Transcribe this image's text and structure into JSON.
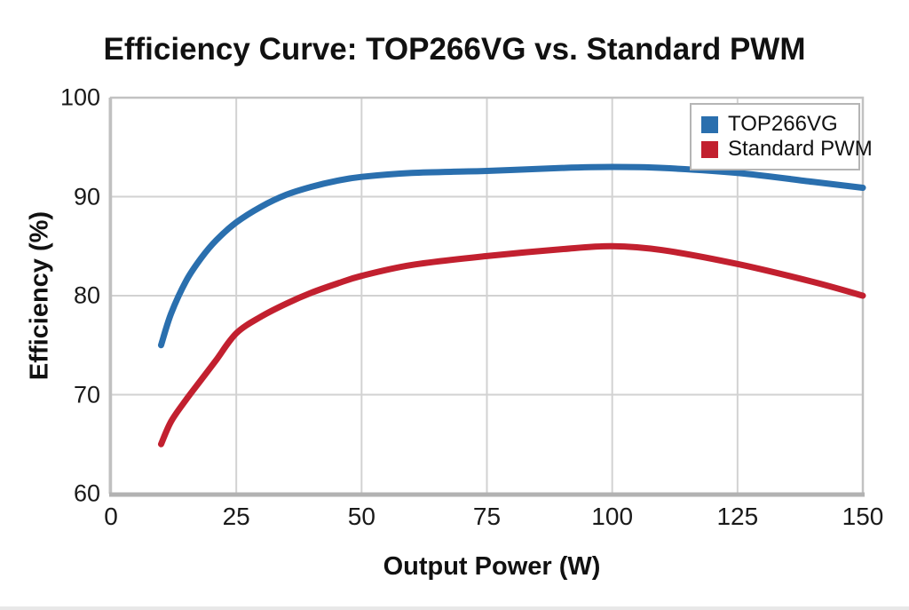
{
  "chart_data": {
    "type": "line",
    "title": "Efficiency Curve: TOP266VG vs. Standard PWM",
    "xlabel": "Output Power (W)",
    "ylabel": "Efficiency (%)",
    "xlim": [
      0,
      150
    ],
    "ylim": [
      60,
      100
    ],
    "xticks": [
      0,
      25,
      50,
      75,
      100,
      125,
      150
    ],
    "yticks": [
      60,
      70,
      80,
      90,
      100
    ],
    "grid": true,
    "grid_color": "#d2d2d2",
    "axis_color": "#c2c2c2",
    "legend_position": "top-right",
    "series": [
      {
        "name": "TOP266VG",
        "color": "#2a6fae",
        "x": [
          10,
          12,
          15,
          18,
          21,
          25,
          30,
          35,
          40,
          45,
          50,
          60,
          75,
          90,
          100,
          110,
          125,
          140,
          150
        ],
        "y": [
          75,
          78.2,
          81.5,
          83.8,
          85.6,
          87.4,
          89,
          90.2,
          91,
          91.6,
          92,
          92.4,
          92.6,
          92.9,
          93,
          92.9,
          92.4,
          91.5,
          90.9
        ]
      },
      {
        "name": "Standard PWM",
        "color": "#c2202f",
        "x": [
          10,
          12,
          15,
          18,
          21,
          25,
          30,
          35,
          40,
          45,
          50,
          60,
          75,
          90,
          100,
          110,
          125,
          140,
          150
        ],
        "y": [
          65,
          67.3,
          69.5,
          71.5,
          73.5,
          76.2,
          77.9,
          79.2,
          80.3,
          81.2,
          82,
          83.1,
          84,
          84.7,
          85,
          84.6,
          83.2,
          81.4,
          80
        ]
      }
    ]
  }
}
